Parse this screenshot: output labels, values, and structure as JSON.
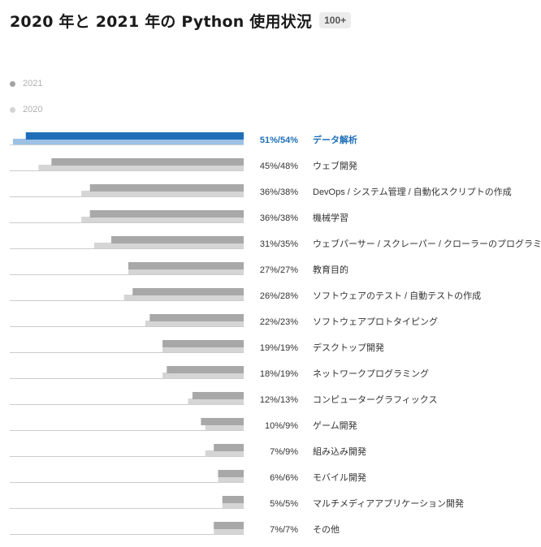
{
  "header": {
    "title": "2020 年と 2021 年の Python 使用状況",
    "badge": "100+"
  },
  "legend": [
    {
      "label": "2021",
      "color": "#a3a3a3"
    },
    {
      "label": "2020",
      "color": "#d4d4d4"
    }
  ],
  "colors": {
    "series_2021": "#a8a8a8",
    "series_2020": "#d5d5d5",
    "highlight_2021": "#1f6fb8",
    "highlight_2020": "#9cc1e4",
    "highlight_text": "#1f6fb8",
    "baseline": "#cccccc"
  },
  "chart_data": {
    "type": "bar",
    "orientation": "horizontal",
    "title": "2020 年と 2021 年の Python 使用状況",
    "categories": [
      "データ解析",
      "ウェブ開発",
      "DevOps / システム管理 / 自動化スクリプトの作成",
      "機械学習",
      "ウェブパーサー / スクレーパー / クローラーのプログラミング",
      "教育目的",
      "ソフトウェアのテスト / 自動テストの作成",
      "ソフトウェアプロトタイピング",
      "デスクトップ開発",
      "ネットワークプログラミング",
      "コンピューターグラフィックス",
      "ゲーム開発",
      "組み込み開発",
      "モバイル開発",
      "マルチメディアアプリケーション開発",
      "その他"
    ],
    "series": [
      {
        "name": "2021",
        "values": [
          51,
          45,
          36,
          36,
          31,
          27,
          26,
          22,
          19,
          18,
          12,
          10,
          7,
          6,
          5,
          7
        ]
      },
      {
        "name": "2020",
        "values": [
          54,
          48,
          38,
          38,
          35,
          27,
          28,
          23,
          19,
          19,
          13,
          9,
          9,
          6,
          5,
          7
        ]
      }
    ],
    "value_labels": [
      "51%/54%",
      "45%/48%",
      "36%/38%",
      "36%/38%",
      "31%/35%",
      "27%/27%",
      "26%/28%",
      "22%/23%",
      "19%/19%",
      "18%/19%",
      "12%/13%",
      "10%/9%",
      "7%/9%",
      "6%/6%",
      "5%/5%",
      "7%/7%"
    ],
    "highlighted_index": 0,
    "xlim": [
      0,
      54
    ]
  }
}
